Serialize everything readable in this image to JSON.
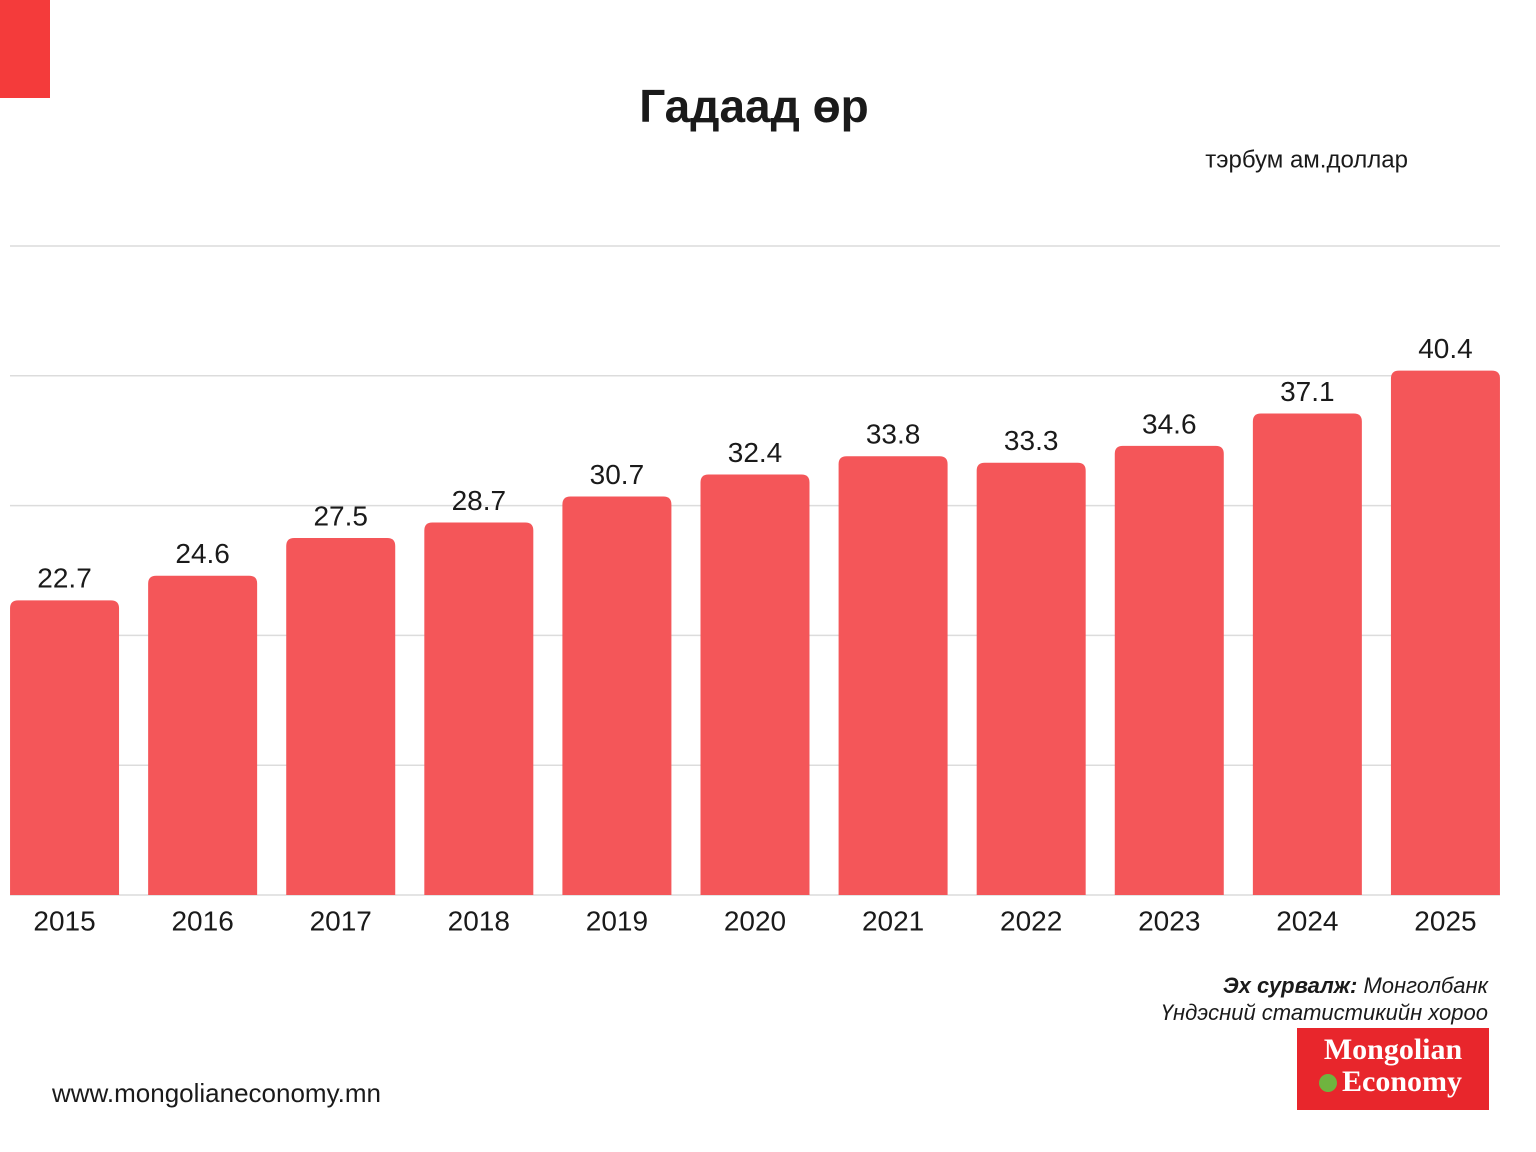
{
  "chart_data": {
    "type": "bar",
    "title": "Гадаад өр",
    "unit": "тэрбум ам.доллар",
    "categories": [
      "2015",
      "2016",
      "2017",
      "2018",
      "2019",
      "2020",
      "2021",
      "2022",
      "2023",
      "2024",
      "2025"
    ],
    "values": [
      22.7,
      24.6,
      27.5,
      28.7,
      30.7,
      32.4,
      33.8,
      33.3,
      34.6,
      37.1,
      40.4
    ],
    "color": "#f45659",
    "ylim": [
      0,
      50
    ],
    "yticks": [
      0,
      10,
      20,
      30,
      40,
      50
    ],
    "grid": true,
    "source_label": "Эх сурвалж:",
    "source": [
      "Монголбанк",
      "Үндэсний статистикийн хороо"
    ],
    "website": "www.mongolianeconomy.mn",
    "logo": [
      "Mongolian",
      "Economy"
    ]
  }
}
